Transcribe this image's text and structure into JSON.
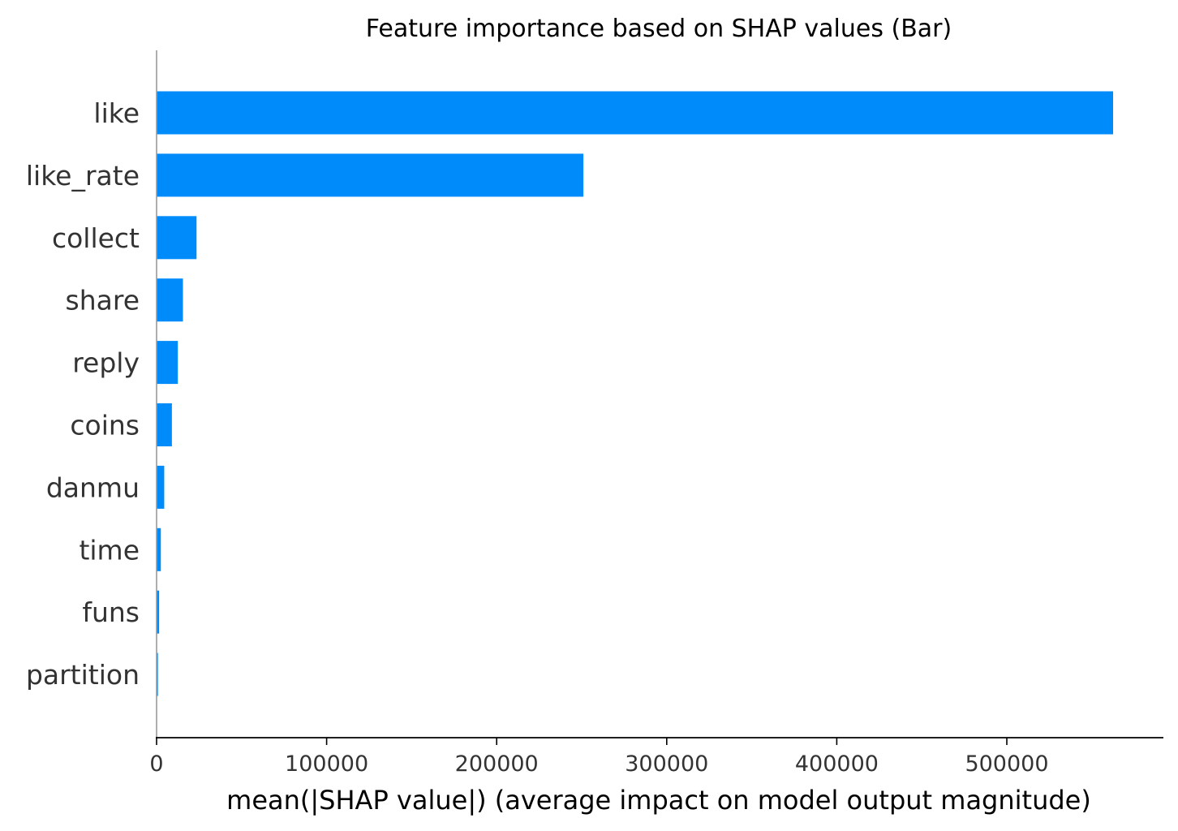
{
  "chart_data": {
    "type": "bar",
    "orientation": "horizontal",
    "title": "Feature importance based on SHAP values (Bar)",
    "xlabel": "mean(|SHAP value|) (average impact on model output magnitude)",
    "ylabel": "",
    "categories": [
      "like",
      "like_rate",
      "collect",
      "share",
      "reply",
      "coins",
      "danmu",
      "time",
      "funs",
      "partition"
    ],
    "values": [
      562500,
      251000,
      23500,
      15500,
      12500,
      9000,
      4500,
      2500,
      1500,
      800
    ],
    "xlim": [
      0,
      590000
    ],
    "xticks": [
      0,
      100000,
      200000,
      300000,
      400000,
      500000
    ],
    "xtick_labels": [
      "0",
      "100000",
      "200000",
      "300000",
      "400000",
      "500000"
    ],
    "grid": false,
    "bar_color": "#008bfb",
    "axis_color": "#000000",
    "left_axis_color": "#999999",
    "label_color": "#333333"
  }
}
